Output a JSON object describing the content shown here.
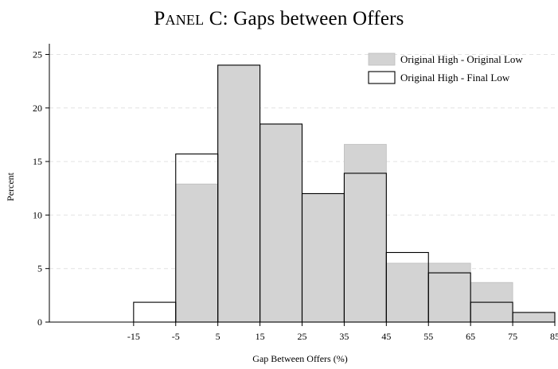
{
  "page_title": {
    "smallcaps": "Panel C",
    "rest": ": Gaps between Offers"
  },
  "chart_data": {
    "type": "bar",
    "title": "Panel C: Gaps between Offers",
    "xlabel": "Gap Between Offers (%)",
    "ylabel": "Percent",
    "ylim": [
      0,
      26
    ],
    "xlim": [
      -35,
      85
    ],
    "x_ticks": [
      "-15",
      "-5",
      "5",
      "15",
      "25",
      "35",
      "45",
      "55",
      "65",
      "75",
      "85"
    ],
    "y_ticks": [
      "0",
      "5",
      "10",
      "15",
      "20",
      "25"
    ],
    "grid": "horizontal dashed",
    "legend_position": "top-right",
    "bin_edges": [
      -15,
      -5,
      5,
      15,
      25,
      35,
      45,
      55,
      65,
      75,
      85
    ],
    "series": [
      {
        "name": "Original High - Original Low",
        "style": "filled",
        "color": "#d3d3d3",
        "values": [
          0,
          12.9,
          24.0,
          18.5,
          12.0,
          16.6,
          5.5,
          5.5,
          3.7,
          0.9
        ]
      },
      {
        "name": "Original High - Final Low",
        "style": "outline",
        "color": "#000000",
        "values": [
          1.85,
          15.7,
          24.0,
          18.5,
          12.0,
          13.9,
          6.5,
          4.6,
          1.85,
          0.9
        ]
      }
    ]
  }
}
